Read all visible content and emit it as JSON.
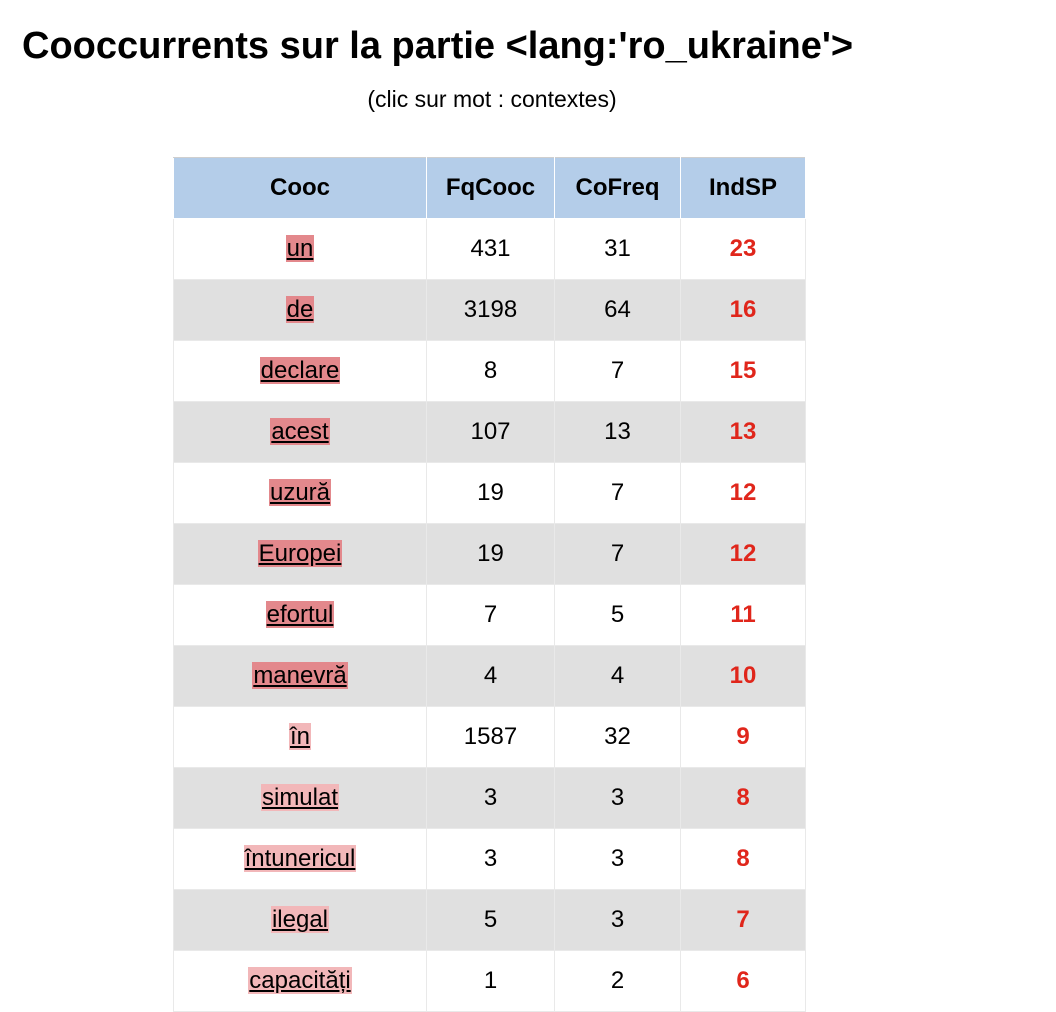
{
  "page": {
    "title": "Cooccurrents sur la partie <lang:'ro_ukraine'>",
    "subtitle": "(clic sur mot : contextes)"
  },
  "table": {
    "headers": [
      "Cooc",
      "FqCooc",
      "CoFreq",
      "IndSP"
    ],
    "rows": [
      {
        "word": "un",
        "fqcooc": "431",
        "cofreq": "31",
        "indsp": "23",
        "highlight": "#e3888c"
      },
      {
        "word": "de",
        "fqcooc": "3198",
        "cofreq": "64",
        "indsp": "16",
        "highlight": "#e3888c"
      },
      {
        "word": "declare",
        "fqcooc": "8",
        "cofreq": "7",
        "indsp": "15",
        "highlight": "#e3888c"
      },
      {
        "word": "acest",
        "fqcooc": "107",
        "cofreq": "13",
        "indsp": "13",
        "highlight": "#e3888c"
      },
      {
        "word": "uzură",
        "fqcooc": "19",
        "cofreq": "7",
        "indsp": "12",
        "highlight": "#e3888c"
      },
      {
        "word": "Europei",
        "fqcooc": "19",
        "cofreq": "7",
        "indsp": "12",
        "highlight": "#e3888c"
      },
      {
        "word": "efortul",
        "fqcooc": "7",
        "cofreq": "5",
        "indsp": "11",
        "highlight": "#e3888c"
      },
      {
        "word": "manevră",
        "fqcooc": "4",
        "cofreq": "4",
        "indsp": "10",
        "highlight": "#e3888c"
      },
      {
        "word": "în",
        "fqcooc": "1587",
        "cofreq": "32",
        "indsp": "9",
        "highlight": "#f2b7b9"
      },
      {
        "word": "simulat",
        "fqcooc": "3",
        "cofreq": "3",
        "indsp": "8",
        "highlight": "#f2b7b9"
      },
      {
        "word": "întunericul",
        "fqcooc": "3",
        "cofreq": "3",
        "indsp": "8",
        "highlight": "#f2b7b9"
      },
      {
        "word": "ilegal",
        "fqcooc": "5",
        "cofreq": "3",
        "indsp": "7",
        "highlight": "#f2b7b9"
      },
      {
        "word": "capacități",
        "fqcooc": "1",
        "cofreq": "2",
        "indsp": "6",
        "highlight": "#f2b7b9"
      }
    ]
  },
  "colors": {
    "header_bg": "#b4cde9",
    "row_alt_bg": "#e0e0e0",
    "indsp_text": "#e0261b"
  }
}
